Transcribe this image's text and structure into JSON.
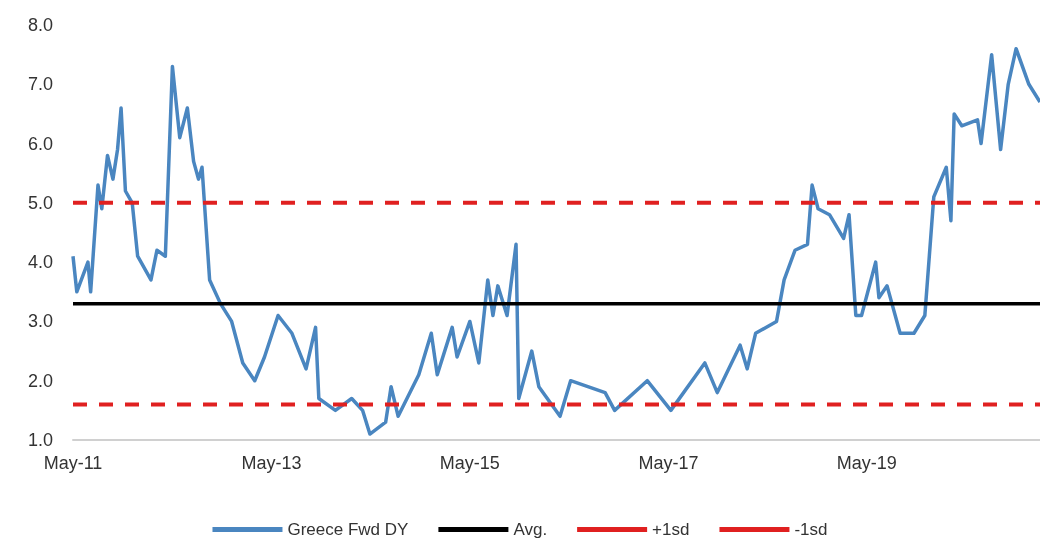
{
  "chart_data": {
    "type": "line",
    "xlim": [
      "2011-05-01",
      "2021-01-28"
    ],
    "xticks": [
      {
        "value": "2011-05-01",
        "label": "May-11"
      },
      {
        "value": "2013-05-01",
        "label": "May-13"
      },
      {
        "value": "2015-05-01",
        "label": "May-15"
      },
      {
        "value": "2017-05-01",
        "label": "May-17"
      },
      {
        "value": "2019-05-01",
        "label": "May-19"
      }
    ],
    "ylim": [
      1,
      8
    ],
    "yticks": [
      {
        "value": 1,
        "label": "1.0"
      },
      {
        "value": 2,
        "label": "2.0"
      },
      {
        "value": 3,
        "label": "3.0"
      },
      {
        "value": 4,
        "label": "4.0"
      },
      {
        "value": 5,
        "label": "5.0"
      },
      {
        "value": 6,
        "label": "6.0"
      },
      {
        "value": 7,
        "label": "7.0"
      },
      {
        "value": 8,
        "label": "8.0"
      }
    ],
    "grid": false,
    "legend": "bottom",
    "marker": "none",
    "series": [
      {
        "name": "Greece Fwd DY",
        "color": "#4a86c0",
        "line_style": "solid",
        "x": [
          "2011-05-01",
          "2011-05-15",
          "2011-06-25",
          "2011-07-05",
          "2011-08-01",
          "2011-08-15",
          "2011-09-05",
          "2011-09-25",
          "2011-10-12",
          "2011-10-25",
          "2011-11-10",
          "2011-12-05",
          "2011-12-25",
          "2012-02-12",
          "2012-03-05",
          "2012-04-05",
          "2012-05-01",
          "2012-05-28",
          "2012-06-25",
          "2012-07-18",
          "2012-08-05",
          "2012-08-18",
          "2012-09-15",
          "2012-10-25",
          "2012-12-05",
          "2013-01-15",
          "2013-02-28",
          "2013-04-05",
          "2013-05-25",
          "2013-07-15",
          "2013-09-05",
          "2013-10-10",
          "2013-10-22",
          "2013-12-22",
          "2014-02-20",
          "2014-04-01",
          "2014-04-28",
          "2014-06-25",
          "2014-07-15",
          "2014-08-10",
          "2014-10-25",
          "2014-12-10",
          "2015-01-01",
          "2015-02-25",
          "2015-03-15",
          "2015-05-01",
          "2015-06-03",
          "2015-07-06",
          "2015-07-25",
          "2015-08-12",
          "2015-09-15",
          "2015-10-18",
          "2015-10-28",
          "2015-12-15",
          "2016-01-10",
          "2016-03-28",
          "2016-05-06",
          "2016-09-10",
          "2016-10-15",
          "2017-02-12",
          "2017-05-10",
          "2017-09-12",
          "2017-10-28",
          "2018-01-20",
          "2018-02-15",
          "2018-03-18",
          "2018-06-03",
          "2018-07-01",
          "2018-08-10",
          "2018-09-25",
          "2018-10-12",
          "2018-11-03",
          "2018-12-15",
          "2019-02-05",
          "2019-02-25",
          "2019-03-22",
          "2019-04-12",
          "2019-06-03",
          "2019-06-15",
          "2019-07-15",
          "2019-09-01",
          "2019-10-22",
          "2019-12-01",
          "2020-01-03",
          "2020-02-18",
          "2020-03-06",
          "2020-03-18",
          "2020-04-15",
          "2020-06-12",
          "2020-06-25",
          "2020-08-03",
          "2020-09-05",
          "2020-10-03",
          "2020-11-01",
          "2020-12-18",
          "2021-01-28"
        ],
        "values": [
          4.1,
          3.5,
          4.0,
          3.5,
          5.3,
          4.9,
          5.8,
          5.4,
          5.9,
          6.6,
          5.2,
          5.0,
          4.1,
          3.7,
          4.2,
          4.1,
          7.3,
          6.1,
          6.6,
          5.7,
          5.4,
          5.6,
          3.7,
          3.3,
          3.0,
          2.3,
          2.0,
          2.4,
          3.1,
          2.8,
          2.2,
          2.9,
          1.7,
          1.5,
          1.7,
          1.5,
          1.1,
          1.3,
          1.9,
          1.4,
          2.1,
          2.8,
          2.1,
          2.9,
          2.4,
          3.0,
          2.3,
          3.7,
          3.1,
          3.6,
          3.1,
          4.3,
          1.7,
          2.5,
          1.9,
          1.4,
          2.0,
          1.8,
          1.5,
          2.0,
          1.5,
          2.3,
          1.8,
          2.6,
          2.2,
          2.8,
          3.0,
          3.7,
          4.2,
          4.3,
          5.3,
          4.9,
          4.8,
          4.4,
          4.8,
          3.1,
          3.1,
          4.0,
          3.4,
          3.6,
          2.8,
          2.8,
          3.1,
          5.1,
          5.6,
          4.7,
          6.5,
          6.3,
          6.4,
          6.0,
          7.5,
          5.9,
          7.0,
          7.6,
          7.0,
          6.7
        ]
      },
      {
        "name": "Avg.",
        "color": "#000000",
        "line_style": "solid",
        "x": [
          "2011-05-01",
          "2021-01-28"
        ],
        "values": [
          3.3,
          3.3
        ]
      },
      {
        "name": "+1sd",
        "color": "#e02020",
        "line_style": "dashed",
        "x": [
          "2011-05-01",
          "2021-01-28"
        ],
        "values": [
          5.0,
          5.0
        ]
      },
      {
        "name": "-1sd",
        "color": "#e02020",
        "line_style": "dashed",
        "x": [
          "2011-05-01",
          "2021-01-28"
        ],
        "values": [
          1.6,
          1.6
        ]
      }
    ]
  }
}
